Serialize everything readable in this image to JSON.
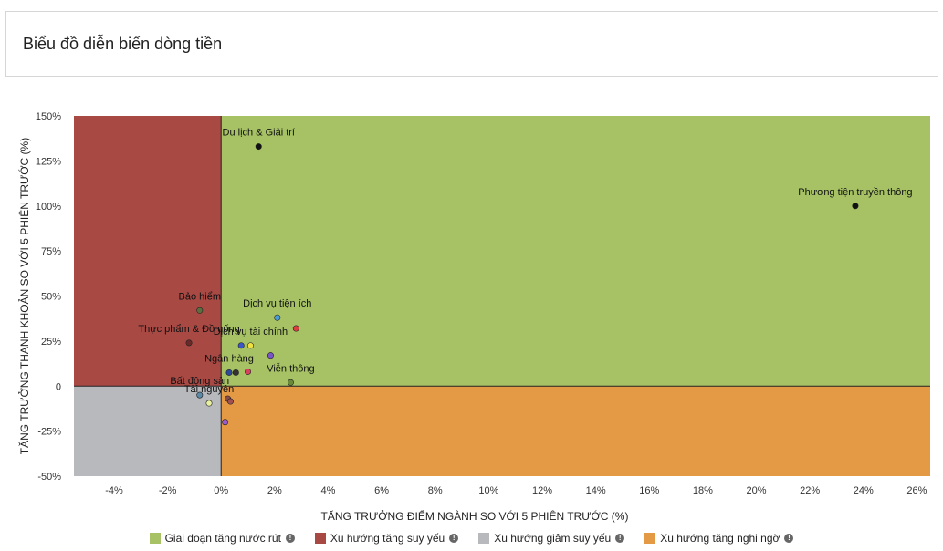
{
  "header": {
    "title": "Biểu đồ diễn biến dòng tiền"
  },
  "colors": {
    "quadrant_top_right": "#a6c264",
    "quadrant_top_left": "#a84944",
    "quadrant_bottom_left": "#b8b9bd",
    "quadrant_bottom_right": "#e49a45"
  },
  "chart_data": {
    "type": "scatter",
    "xlabel": "TĂNG TRƯỞNG ĐIỂM NGÀNH SO VỚI 5 PHIÊN TRƯỚC (%)",
    "ylabel": "TĂNG TRƯỞNG THANH KHOẢN SO VỚI 5 PHIÊN TRƯỚC (%)",
    "xlim": [
      -5.5,
      26.5
    ],
    "ylim": [
      -50,
      150
    ],
    "x_ticks": [
      -4,
      -2,
      0,
      2,
      4,
      6,
      8,
      10,
      12,
      14,
      16,
      18,
      20,
      22,
      24,
      26
    ],
    "x_tick_labels": [
      "-4%",
      "-2%",
      "0%",
      "2%",
      "4%",
      "6%",
      "8%",
      "10%",
      "12%",
      "14%",
      "16%",
      "18%",
      "20%",
      "22%",
      "24%",
      "26%"
    ],
    "y_ticks": [
      -50,
      -25,
      0,
      25,
      50,
      75,
      100,
      125,
      150
    ],
    "y_tick_labels": [
      "-50%",
      "-25%",
      "0",
      "25%",
      "50%",
      "75%",
      "100%",
      "125%",
      "150%"
    ],
    "grid": false,
    "legend_position": "bottom",
    "points": [
      {
        "label": "Du lịch & Giải trí",
        "x": 1.4,
        "y": 133,
        "color": "#111111"
      },
      {
        "label": "Phương tiện truyền thông",
        "x": 23.7,
        "y": 100,
        "color": "#111111"
      },
      {
        "label": "Bảo hiểm",
        "x": -0.8,
        "y": 42,
        "color": "#5d6e3e"
      },
      {
        "label": "Dịch vụ tiện ích",
        "x": 2.1,
        "y": 38,
        "color": "#4a9ed8"
      },
      {
        "label": "",
        "x": 2.8,
        "y": 32,
        "color": "#d94040"
      },
      {
        "label": "Thực phẩm & Đồ uống",
        "x": -1.2,
        "y": 24,
        "color": "#6a2a2a"
      },
      {
        "label": "",
        "x": 0.75,
        "y": 22.5,
        "color": "#3a55c8"
      },
      {
        "label": "Dịch vụ tài chính",
        "x": 1.1,
        "y": 22.5,
        "color": "#f0e040"
      },
      {
        "label": "",
        "x": 1.85,
        "y": 17,
        "color": "#7a55c8"
      },
      {
        "label": "Ngân hàng",
        "x": 0.3,
        "y": 7.5,
        "color": "#2e4a9a"
      },
      {
        "label": "",
        "x": 0.55,
        "y": 7.5,
        "color": "#333333"
      },
      {
        "label": "",
        "x": 1.0,
        "y": 8,
        "color": "#d94060"
      },
      {
        "label": "Viễn thông",
        "x": 2.6,
        "y": 2,
        "color": "#6a8a3a"
      },
      {
        "label": "Bất động sản",
        "x": -0.8,
        "y": -5,
        "color": "#5a8aa8"
      },
      {
        "label": "",
        "x": 0.25,
        "y": -7,
        "color": "#8a4a4a"
      },
      {
        "label": "",
        "x": 0.35,
        "y": -8.5,
        "color": "#a05050"
      },
      {
        "label": "Tài nguyên",
        "x": -0.45,
        "y": -9.5,
        "color": "#e6f0a0"
      },
      {
        "label": "",
        "x": 0.15,
        "y": -20,
        "color": "#9a5ad0"
      }
    ],
    "legend": [
      {
        "label": "Giai đoạn tăng nước rút",
        "color": "#a6c264"
      },
      {
        "label": "Xu hướng tăng suy yếu",
        "color": "#a84944"
      },
      {
        "label": "Xu hướng giảm suy yếu",
        "color": "#b8b9bd"
      },
      {
        "label": "Xu hướng tăng nghi ngờ",
        "color": "#e49a45"
      }
    ]
  }
}
